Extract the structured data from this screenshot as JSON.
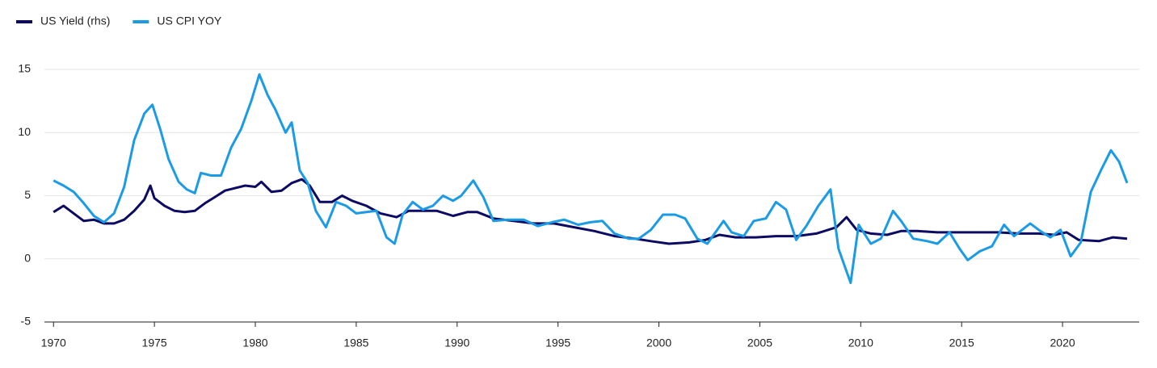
{
  "chart_data": {
    "type": "line",
    "xlim": [
      1969.55,
      2023.8
    ],
    "xticks": [
      1970,
      1975,
      1980,
      1985,
      1990,
      1995,
      2000,
      2005,
      2010,
      2015,
      2020
    ],
    "ylim": [
      -5,
      15
    ],
    "yticks": [
      -5,
      0,
      5,
      10,
      15
    ],
    "grid": true,
    "legend": "top-left",
    "series": [
      {
        "name": "US Yield (rhs)",
        "color": "#0d0a63",
        "x": [
          1970.0,
          1970.5,
          1971.0,
          1971.5,
          1972.0,
          1972.5,
          1973.0,
          1973.5,
          1974.0,
          1974.5,
          1974.8,
          1975.0,
          1975.5,
          1976.0,
          1976.5,
          1977.0,
          1977.5,
          1978.0,
          1978.5,
          1979.0,
          1979.5,
          1980.0,
          1980.3,
          1980.8,
          1981.3,
          1981.8,
          1982.3,
          1982.7,
          1983.2,
          1983.8,
          1984.3,
          1984.8,
          1985.5,
          1986.2,
          1987.0,
          1987.6,
          1988.2,
          1989.0,
          1989.8,
          1990.5,
          1991.0,
          1991.8,
          1992.8,
          1993.8,
          1994.8,
          1995.8,
          1996.8,
          1997.8,
          1998.8,
          1999.6,
          2000.5,
          2001.5,
          2002.3,
          2003.0,
          2003.8,
          2004.8,
          2005.8,
          2006.8,
          2007.8,
          2008.8,
          2009.3,
          2009.8,
          2010.5,
          2011.3,
          2012.0,
          2012.8,
          2013.8,
          2014.8,
          2015.8,
          2016.8,
          2017.8,
          2018.8,
          2019.6,
          2020.2,
          2020.8,
          2021.8,
          2022.5,
          2023.2
        ],
        "values": [
          3.7,
          4.2,
          3.6,
          3.0,
          3.1,
          2.8,
          2.8,
          3.1,
          3.8,
          4.7,
          5.8,
          4.8,
          4.2,
          3.8,
          3.7,
          3.8,
          4.4,
          4.9,
          5.4,
          5.6,
          5.8,
          5.7,
          6.1,
          5.3,
          5.4,
          6.0,
          6.3,
          5.8,
          4.5,
          4.5,
          5.0,
          4.6,
          4.2,
          3.6,
          3.3,
          3.8,
          3.8,
          3.8,
          3.4,
          3.7,
          3.7,
          3.2,
          3.0,
          2.8,
          2.8,
          2.5,
          2.2,
          1.8,
          1.6,
          1.4,
          1.2,
          1.3,
          1.5,
          1.9,
          1.7,
          1.7,
          1.8,
          1.8,
          2.0,
          2.5,
          3.3,
          2.3,
          2.0,
          1.9,
          2.2,
          2.2,
          2.1,
          2.1,
          2.1,
          2.1,
          2.0,
          2.0,
          1.9,
          2.1,
          1.5,
          1.4,
          1.7,
          1.6
        ]
      },
      {
        "name": "US CPI YOY",
        "color": "#1b9be6",
        "x": [
          1970.0,
          1970.5,
          1971.0,
          1971.5,
          1972.0,
          1972.5,
          1973.0,
          1973.5,
          1974.0,
          1974.5,
          1974.9,
          1975.3,
          1975.7,
          1976.2,
          1976.6,
          1977.0,
          1977.3,
          1977.8,
          1978.3,
          1978.8,
          1979.3,
          1979.8,
          1980.2,
          1980.6,
          1981.0,
          1981.5,
          1981.8,
          1982.2,
          1982.6,
          1983.0,
          1983.5,
          1984.0,
          1984.5,
          1985.0,
          1985.5,
          1986.0,
          1986.5,
          1986.9,
          1987.3,
          1987.8,
          1988.3,
          1988.8,
          1989.3,
          1989.8,
          1990.2,
          1990.8,
          1991.3,
          1991.8,
          1992.5,
          1993.3,
          1994.0,
          1994.7,
          1995.3,
          1996.0,
          1996.6,
          1997.2,
          1997.8,
          1998.5,
          1999.0,
          1999.6,
          2000.2,
          2000.8,
          2001.3,
          2001.9,
          2002.4,
          2002.8,
          2003.2,
          2003.6,
          2004.2,
          2004.7,
          2005.3,
          2005.8,
          2006.3,
          2006.8,
          2007.3,
          2007.9,
          2008.5,
          2008.9,
          2009.5,
          2009.9,
          2010.5,
          2011.0,
          2011.6,
          2012.0,
          2012.6,
          2013.3,
          2013.8,
          2014.4,
          2014.9,
          2015.3,
          2015.9,
          2016.5,
          2017.1,
          2017.6,
          2018.4,
          2018.9,
          2019.4,
          2019.9,
          2020.4,
          2020.9,
          2021.4,
          2021.9,
          2022.4,
          2022.8,
          2023.2
        ],
        "values": [
          6.2,
          5.8,
          5.3,
          4.4,
          3.4,
          2.9,
          3.6,
          5.7,
          9.4,
          11.5,
          12.2,
          10.2,
          7.9,
          6.1,
          5.5,
          5.2,
          6.8,
          6.6,
          6.6,
          8.8,
          10.3,
          12.5,
          14.6,
          13.0,
          11.8,
          10.0,
          10.8,
          7.0,
          6.0,
          3.8,
          2.5,
          4.5,
          4.2,
          3.6,
          3.7,
          3.8,
          1.7,
          1.2,
          3.5,
          4.5,
          3.9,
          4.2,
          5.0,
          4.6,
          5.0,
          6.2,
          4.9,
          3.0,
          3.1,
          3.1,
          2.6,
          2.9,
          3.1,
          2.7,
          2.9,
          3.0,
          2.0,
          1.6,
          1.6,
          2.3,
          3.5,
          3.5,
          3.2,
          1.6,
          1.2,
          2.1,
          3.0,
          2.1,
          1.8,
          3.0,
          3.2,
          4.5,
          3.9,
          1.5,
          2.6,
          4.2,
          5.5,
          0.8,
          -1.9,
          2.7,
          1.2,
          1.6,
          3.8,
          3.0,
          1.6,
          1.4,
          1.2,
          2.1,
          0.8,
          -0.1,
          0.6,
          1.0,
          2.7,
          1.8,
          2.8,
          2.2,
          1.7,
          2.3,
          0.2,
          1.3,
          5.3,
          7.0,
          8.6,
          7.7,
          6.0
        ]
      }
    ]
  }
}
